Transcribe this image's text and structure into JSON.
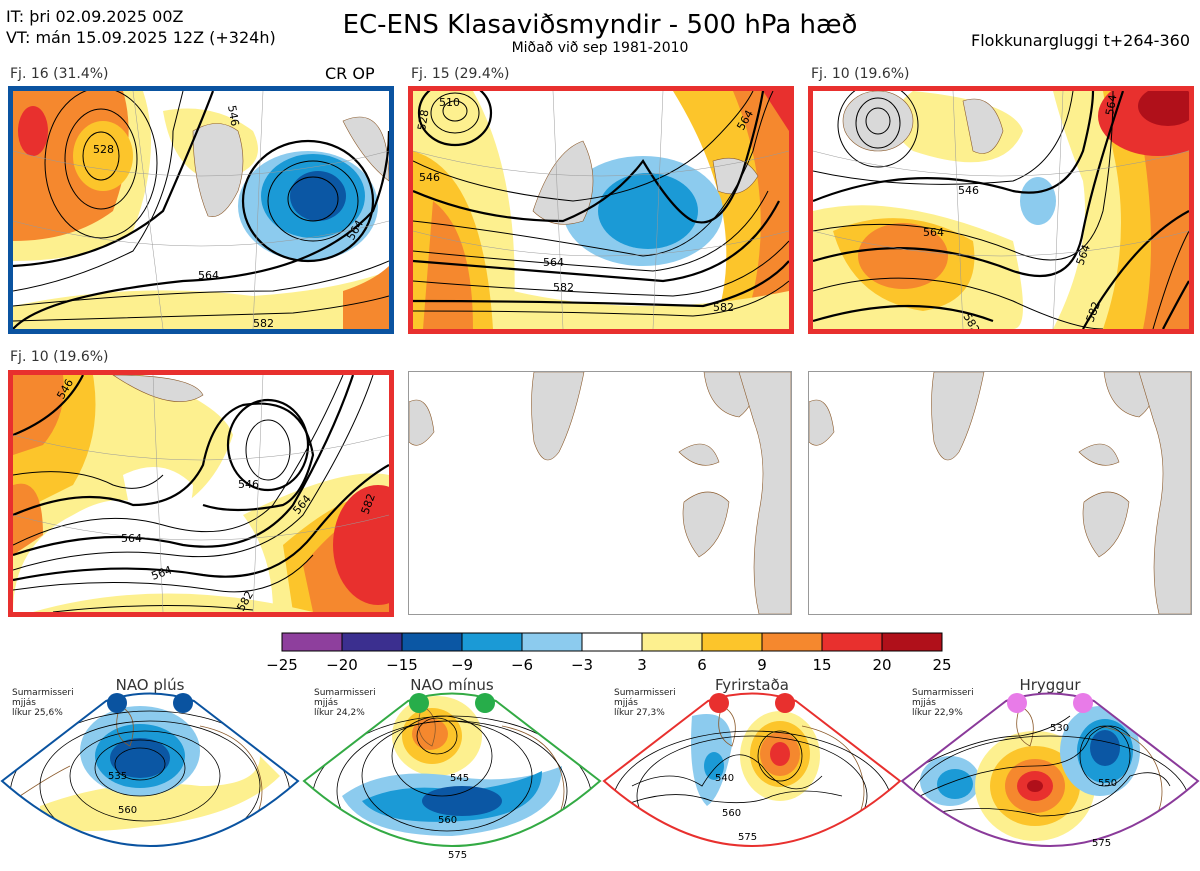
{
  "header": {
    "init_time": "IT: þri 02.09.2025 00Z",
    "valid_time": "VT: mán 15.09.2025 12Z  (+324h)",
    "title": "EC-ENS Klasaviðsmyndir - 500 hPa hæð",
    "subtitle": "Miðað við sep 1981-2010",
    "window": "Flokkunargluggi t+264-360"
  },
  "colors": {
    "blue_frame": "#0a53a0",
    "red_frame": "#e8302e",
    "green_frame": "#33aa44",
    "purple_frame": "#8a3a9a",
    "land": "#d9d9d9",
    "coast": "#8b5a2b"
  },
  "panels": [
    {
      "label": "Fj. 16 (31.4%)",
      "tag": "CR OP",
      "frame": "blue",
      "contours": [
        "528",
        "546",
        "564",
        "564",
        "582"
      ]
    },
    {
      "label": "Fj. 15 (29.4%)",
      "tag": "",
      "frame": "red",
      "contours": [
        "510",
        "528",
        "546",
        "564",
        "564",
        "582",
        "582"
      ]
    },
    {
      "label": "Fj. 10 (19.6%)",
      "tag": "",
      "frame": "red",
      "contours": [
        "546",
        "564",
        "564",
        "564",
        "582",
        "582"
      ]
    },
    {
      "label": "Fj. 10 (19.6%)",
      "tag": "",
      "frame": "red",
      "contours": [
        "546",
        "546",
        "564",
        "564",
        "582",
        "582",
        "564"
      ]
    }
  ],
  "colorbar": {
    "colors": [
      "#8e3f9d",
      "#3b2f8f",
      "#0b57a4",
      "#1b9ad6",
      "#8ccbee",
      "#ffffff",
      "#fdf08f",
      "#fcc52b",
      "#f5882e",
      "#e8302e",
      "#b0101a"
    ],
    "ticks": [
      "−25",
      "−20",
      "−15",
      "−9",
      "−6",
      "−3",
      "3",
      "6",
      "9",
      "15",
      "20",
      "25"
    ]
  },
  "regimes": [
    {
      "title": "NAO plús",
      "stat": [
        "Sumarmisseri",
        "mjjás",
        "líkur 25,6%"
      ],
      "dot": "#0a53a0",
      "frame": "#0a53a0",
      "contours": [
        "535",
        "560"
      ]
    },
    {
      "title": "NAO mínus",
      "stat": [
        "Sumarmisseri",
        "mjjás",
        "líkur 24,2%"
      ],
      "dot": "#27ad4a",
      "frame": "#33aa44",
      "contours": [
        "545",
        "560",
        "575"
      ]
    },
    {
      "title": "Fyrirstaða",
      "stat": [
        "Sumarmisseri",
        "mjjás",
        "líkur 27,3%"
      ],
      "dot": "#e8302e",
      "frame": "#e8302e",
      "contours": [
        "540",
        "560",
        "575"
      ]
    },
    {
      "title": "Hryggur",
      "stat": [
        "Sumarmisseri",
        "mjjás",
        "líkur 22,9%"
      ],
      "dot": "#e87be8",
      "frame": "#8a3a9a",
      "contours": [
        "530",
        "550",
        "575"
      ]
    }
  ]
}
